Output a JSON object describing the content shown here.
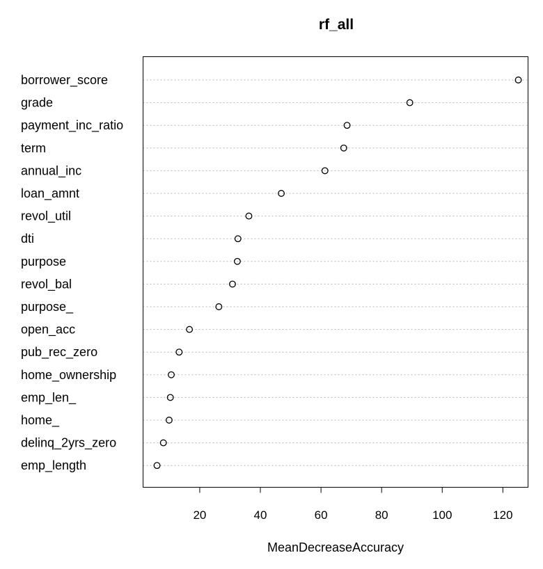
{
  "chart_data": {
    "type": "scatter",
    "subtype": "dotchart",
    "title": "rf_all",
    "xlabel": "MeanDecreaseAccuracy",
    "ylabel": "",
    "xlim": [
      1.3,
      128.3
    ],
    "xticks": [
      20,
      40,
      60,
      80,
      100,
      120
    ],
    "grid": "dotted horizontal lines at each variable",
    "legend": "none",
    "categories": [
      "borrower_score",
      "grade",
      "payment_inc_ratio",
      "term",
      "annual_inc",
      "loan_amnt",
      "revol_util",
      "dti",
      "purpose",
      "revol_bal",
      "purpose_",
      "open_acc",
      "pub_rec_zero",
      "home_ownership",
      "emp_len_",
      "home_",
      "delinq_2yrs_zero",
      "emp_length"
    ],
    "values": [
      125.1,
      89.3,
      68.6,
      67.5,
      61.3,
      46.9,
      36.2,
      32.6,
      32.4,
      30.8,
      26.3,
      16.6,
      13.2,
      10.6,
      10.3,
      9.9,
      8.0,
      5.9
    ]
  }
}
